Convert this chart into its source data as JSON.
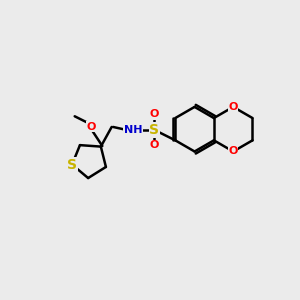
{
  "bg_color": "#ebebeb",
  "bond_color": "#000000",
  "bond_width": 1.8,
  "S_color": "#c8b400",
  "O_color": "#ff0000",
  "N_color": "#0000cd",
  "figsize": [
    3.0,
    3.0
  ],
  "dpi": 100,
  "xlim": [
    0,
    10
  ],
  "ylim": [
    0,
    10
  ]
}
